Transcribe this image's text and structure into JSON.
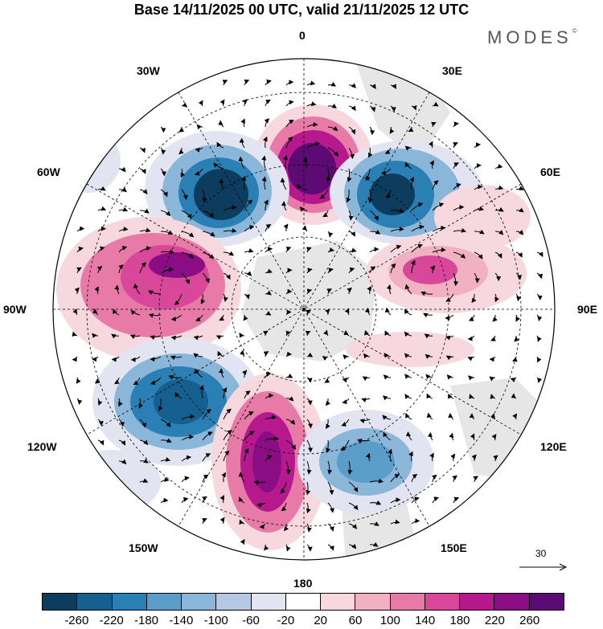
{
  "title": "Base 14/11/2025 00 UTC, valid 21/11/2025 12 UTC",
  "brand": "MODES",
  "brand_mark": "©",
  "longitude_labels": [
    "0",
    "30E",
    "60E",
    "90E",
    "120E",
    "150E",
    "180",
    "150W",
    "120W",
    "90W",
    "60W",
    "30W"
  ],
  "vector_scale_label": "30",
  "colorbar": {
    "ticks": [
      "-260",
      "-220",
      "-180",
      "-140",
      "-100",
      "-60",
      "-20",
      "20",
      "60",
      "100",
      "140",
      "180",
      "220",
      "260"
    ],
    "colors": [
      "#0c3d5e",
      "#15608f",
      "#2a7fb4",
      "#5a9dc8",
      "#89b6d9",
      "#b6c8e4",
      "#e3e4f1",
      "#ffffff",
      "#f8d8df",
      "#f2b1c3",
      "#e87aa8",
      "#d9479a",
      "#b6188d",
      "#8b0d84",
      "#5c0a74"
    ]
  },
  "map_colors": {
    "neg_light": "#e3e4f1",
    "neg_mid": "#b6c8e4",
    "neg_2": "#89b6d9",
    "neg_3": "#5a9dc8",
    "neg_4": "#2a7fb4",
    "neg_5": "#15608f",
    "neg_6": "#0c3d5e",
    "pos_light": "#f8d8df",
    "pos_2": "#f2b1c3",
    "pos_3": "#e87aa8",
    "pos_4": "#d9479a",
    "pos_5": "#b6188d",
    "pos_6": "#8b0d84",
    "land": "#e6e6e6"
  }
}
